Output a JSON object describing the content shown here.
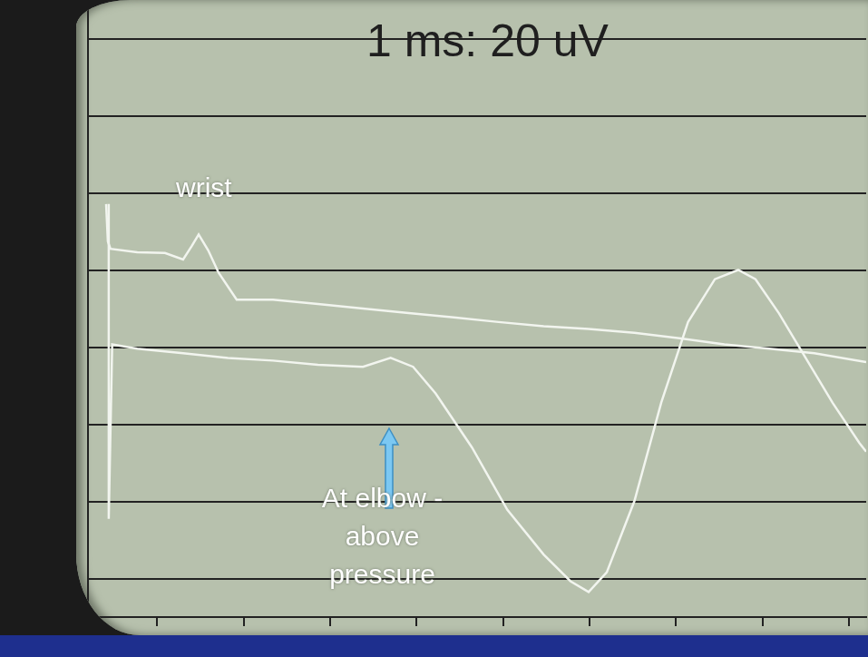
{
  "chart_data": {
    "type": "line",
    "title": "1 ms: 20 uV",
    "xlim": [
      -0.8,
      8.2
    ],
    "xticks": [
      0,
      1,
      2,
      3,
      4,
      5,
      6,
      7,
      8
    ],
    "ylim": [
      -10,
      150
    ],
    "yticks": [
      0,
      20,
      40,
      60,
      80,
      100,
      120,
      140
    ],
    "grid": true,
    "tick_labels": false,
    "series": [
      {
        "name": "wrist",
        "color": "#f2f5ef",
        "line_style": "solid",
        "marker": "none",
        "x": [
          -0.59,
          -0.57,
          -0.54,
          -0.23,
          0.09,
          0.3,
          0.4,
          0.48,
          0.59,
          0.71,
          0.92,
          1.34,
          1.86,
          2.38,
          2.91,
          3.43,
          3.95,
          4.47,
          4.99,
          5.52,
          6.04,
          6.56,
          7.08,
          7.6,
          8.2
        ],
        "values": [
          97.1,
          87.4,
          85.5,
          84.6,
          84.4,
          82.7,
          86.2,
          89.2,
          85.1,
          79.3,
          72.3,
          72.3,
          71.2,
          70.0,
          68.8,
          67.7,
          66.5,
          65.4,
          64.7,
          63.7,
          62.3,
          60.7,
          59.6,
          58.4,
          56.1
        ]
      },
      {
        "name": "At elbow -above pressure",
        "color": "#f2f5ef",
        "line_style": "solid",
        "marker": "none",
        "x": [
          -0.56,
          -0.56,
          -0.52,
          -0.23,
          0.3,
          0.82,
          1.34,
          1.86,
          2.38,
          2.7,
          2.96,
          3.22,
          3.64,
          4.05,
          4.47,
          4.78,
          4.99,
          5.2,
          5.52,
          5.83,
          6.14,
          6.45,
          6.72,
          6.92,
          7.19,
          7.5,
          7.81,
          8.12,
          8.2
        ],
        "values": [
          97.1,
          15.5,
          60.7,
          59.6,
          58.4,
          57.2,
          56.5,
          55.4,
          54.9,
          57.2,
          54.9,
          48.0,
          34.0,
          17.8,
          6.2,
          -0.7,
          -3.5,
          1.6,
          20.1,
          45.6,
          66.5,
          77.6,
          80.0,
          77.6,
          68.8,
          57.2,
          45.6,
          35.2,
          32.9
        ]
      }
    ]
  }
}
